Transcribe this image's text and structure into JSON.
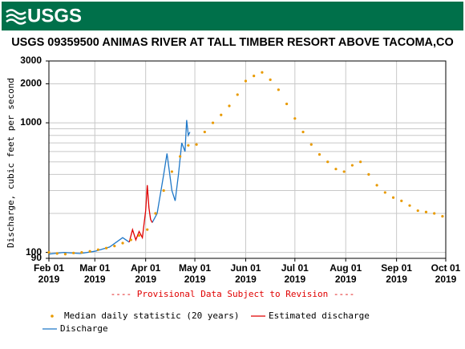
{
  "header": {
    "logo": "USGS"
  },
  "chart_data": {
    "type": "line",
    "title": "USGS 09359500 ANIMAS RIVER AT TALL TIMBER RESORT ABOVE TACOMA,CO",
    "y_label": "Discharge, cubic feet per second",
    "annotation": "---- Provisional Data Subject to Revision ----",
    "log_y": true,
    "grid": true,
    "xlim": [
      "2019-02-01",
      "2019-10-01"
    ],
    "xticks": [
      {
        "value": "2019-02-01",
        "label": [
          "Feb 01",
          "2019"
        ]
      },
      {
        "value": "2019-03-01",
        "label": [
          "Mar 01",
          "2019"
        ]
      },
      {
        "value": "2019-04-01",
        "label": [
          "Apr 01",
          "2019"
        ]
      },
      {
        "value": "2019-05-01",
        "label": [
          "May 01",
          "2019"
        ]
      },
      {
        "value": "2019-06-01",
        "label": [
          "Jun 01",
          "2019"
        ]
      },
      {
        "value": "2019-07-01",
        "label": [
          "Jul 01",
          "2019"
        ]
      },
      {
        "value": "2019-08-01",
        "label": [
          "Aug 01",
          "2019"
        ]
      },
      {
        "value": "2019-09-01",
        "label": [
          "Sep 01",
          "2019"
        ]
      },
      {
        "value": "2019-10-01",
        "label": [
          "Oct 01",
          "2019"
        ]
      }
    ],
    "ylim": [
      90,
      3000
    ],
    "yticks": [
      90,
      100,
      1000,
      2000,
      3000
    ],
    "ygrid": [
      200,
      300,
      400,
      500,
      600,
      700,
      800,
      900
    ],
    "series": [
      {
        "name": "Median daily statistic (20 years)",
        "color": "#e89a00",
        "style": "dots",
        "x": [
          "2019-02-01",
          "2019-02-06",
          "2019-02-11",
          "2019-02-16",
          "2019-02-21",
          "2019-02-26",
          "2019-03-03",
          "2019-03-08",
          "2019-03-13",
          "2019-03-18",
          "2019-03-23",
          "2019-03-28",
          "2019-04-02",
          "2019-04-07",
          "2019-04-12",
          "2019-04-17",
          "2019-04-22",
          "2019-04-27",
          "2019-05-02",
          "2019-05-07",
          "2019-05-12",
          "2019-05-17",
          "2019-05-22",
          "2019-05-27",
          "2019-06-01",
          "2019-06-06",
          "2019-06-11",
          "2019-06-16",
          "2019-06-21",
          "2019-06-26",
          "2019-07-01",
          "2019-07-06",
          "2019-07-11",
          "2019-07-16",
          "2019-07-21",
          "2019-07-26",
          "2019-07-31",
          "2019-08-05",
          "2019-08-10",
          "2019-08-15",
          "2019-08-20",
          "2019-08-25",
          "2019-08-30",
          "2019-09-04",
          "2019-09-09",
          "2019-09-14",
          "2019-09-19",
          "2019-09-24",
          "2019-09-29"
        ],
        "values": [
          100,
          98,
          97,
          99,
          100,
          102,
          105,
          108,
          112,
          118,
          125,
          135,
          150,
          200,
          300,
          420,
          550,
          670,
          680,
          850,
          1000,
          1150,
          1350,
          1650,
          2100,
          2300,
          2450,
          2150,
          1800,
          1400,
          1080,
          850,
          680,
          570,
          500,
          440,
          420,
          470,
          500,
          400,
          330,
          290,
          265,
          250,
          230,
          210,
          205,
          200,
          190
        ]
      },
      {
        "name": "Estimated discharge",
        "color": "#e00000",
        "style": "line",
        "x": [
          "2019-03-22",
          "2019-03-24",
          "2019-03-26",
          "2019-03-28",
          "2019-03-30",
          "2019-04-01",
          "2019-04-02",
          "2019-04-03",
          "2019-04-04",
          "2019-04-05"
        ],
        "values": [
          120,
          150,
          125,
          145,
          130,
          210,
          330,
          220,
          180,
          170
        ]
      },
      {
        "name": "Discharge",
        "color": "#1f78c8",
        "style": "line",
        "x": [
          "2019-02-01",
          "2019-02-10",
          "2019-02-20",
          "2019-03-01",
          "2019-03-10",
          "2019-03-18",
          "2019-03-22",
          "2019-03-30",
          "2019-04-05",
          "2019-04-08",
          "2019-04-12",
          "2019-04-14",
          "2019-04-17",
          "2019-04-19",
          "2019-04-21",
          "2019-04-23",
          "2019-04-25",
          "2019-04-26",
          "2019-04-27",
          "2019-04-28"
        ],
        "values": [
          97,
          100,
          98,
          102,
          110,
          130,
          120,
          null,
          170,
          200,
          400,
          580,
          300,
          250,
          400,
          700,
          600,
          1050,
          800,
          850
        ]
      }
    ]
  }
}
